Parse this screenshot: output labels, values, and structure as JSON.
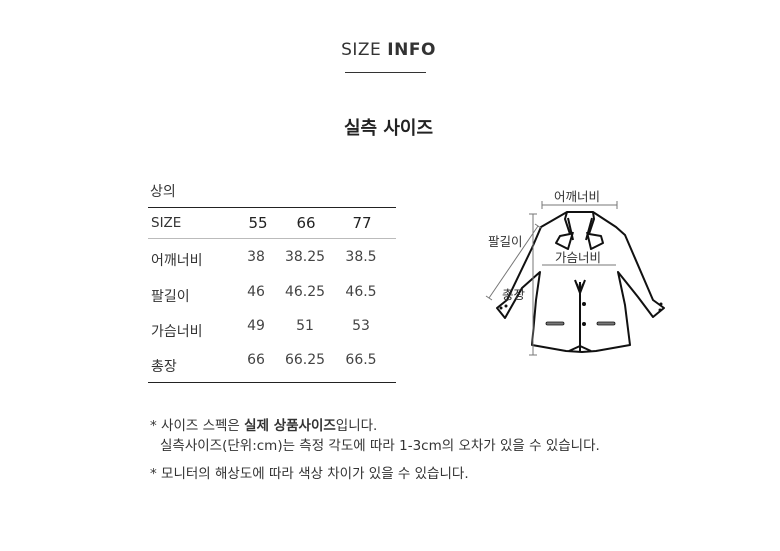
{
  "header": {
    "title_light": "SIZE",
    "title_bold": "INFO",
    "subtitle": "실측 사이즈"
  },
  "table": {
    "section": "상의",
    "columns": [
      "SIZE",
      "55",
      "66",
      "77"
    ],
    "rows": [
      {
        "label": "어깨너비",
        "values": [
          "38",
          "38.25",
          "38.5"
        ]
      },
      {
        "label": "팔길이",
        "values": [
          "46",
          "46.25",
          "46.5"
        ]
      },
      {
        "label": "가슴너비",
        "values": [
          "49",
          "51",
          "53"
        ]
      },
      {
        "label": "총장",
        "values": [
          "66",
          "66.25",
          "66.5"
        ]
      }
    ]
  },
  "diagram": {
    "shoulder": "어깨너비",
    "sleeve": "팔길이",
    "chest": "가슴너비",
    "length": "총장"
  },
  "notes": {
    "n1_prefix": "* 사이즈 스펙은 ",
    "n1_bold": "실제 상품사이즈",
    "n1_suffix": "입니다.",
    "n2": "실측사이즈(단위:cm)는 측정 각도에 따라 1-3cm의 오차가 있을 수 있습니다.",
    "n3": "* 모니터의 해상도에 따라 색상 차이가 있을 수 있습니다."
  }
}
